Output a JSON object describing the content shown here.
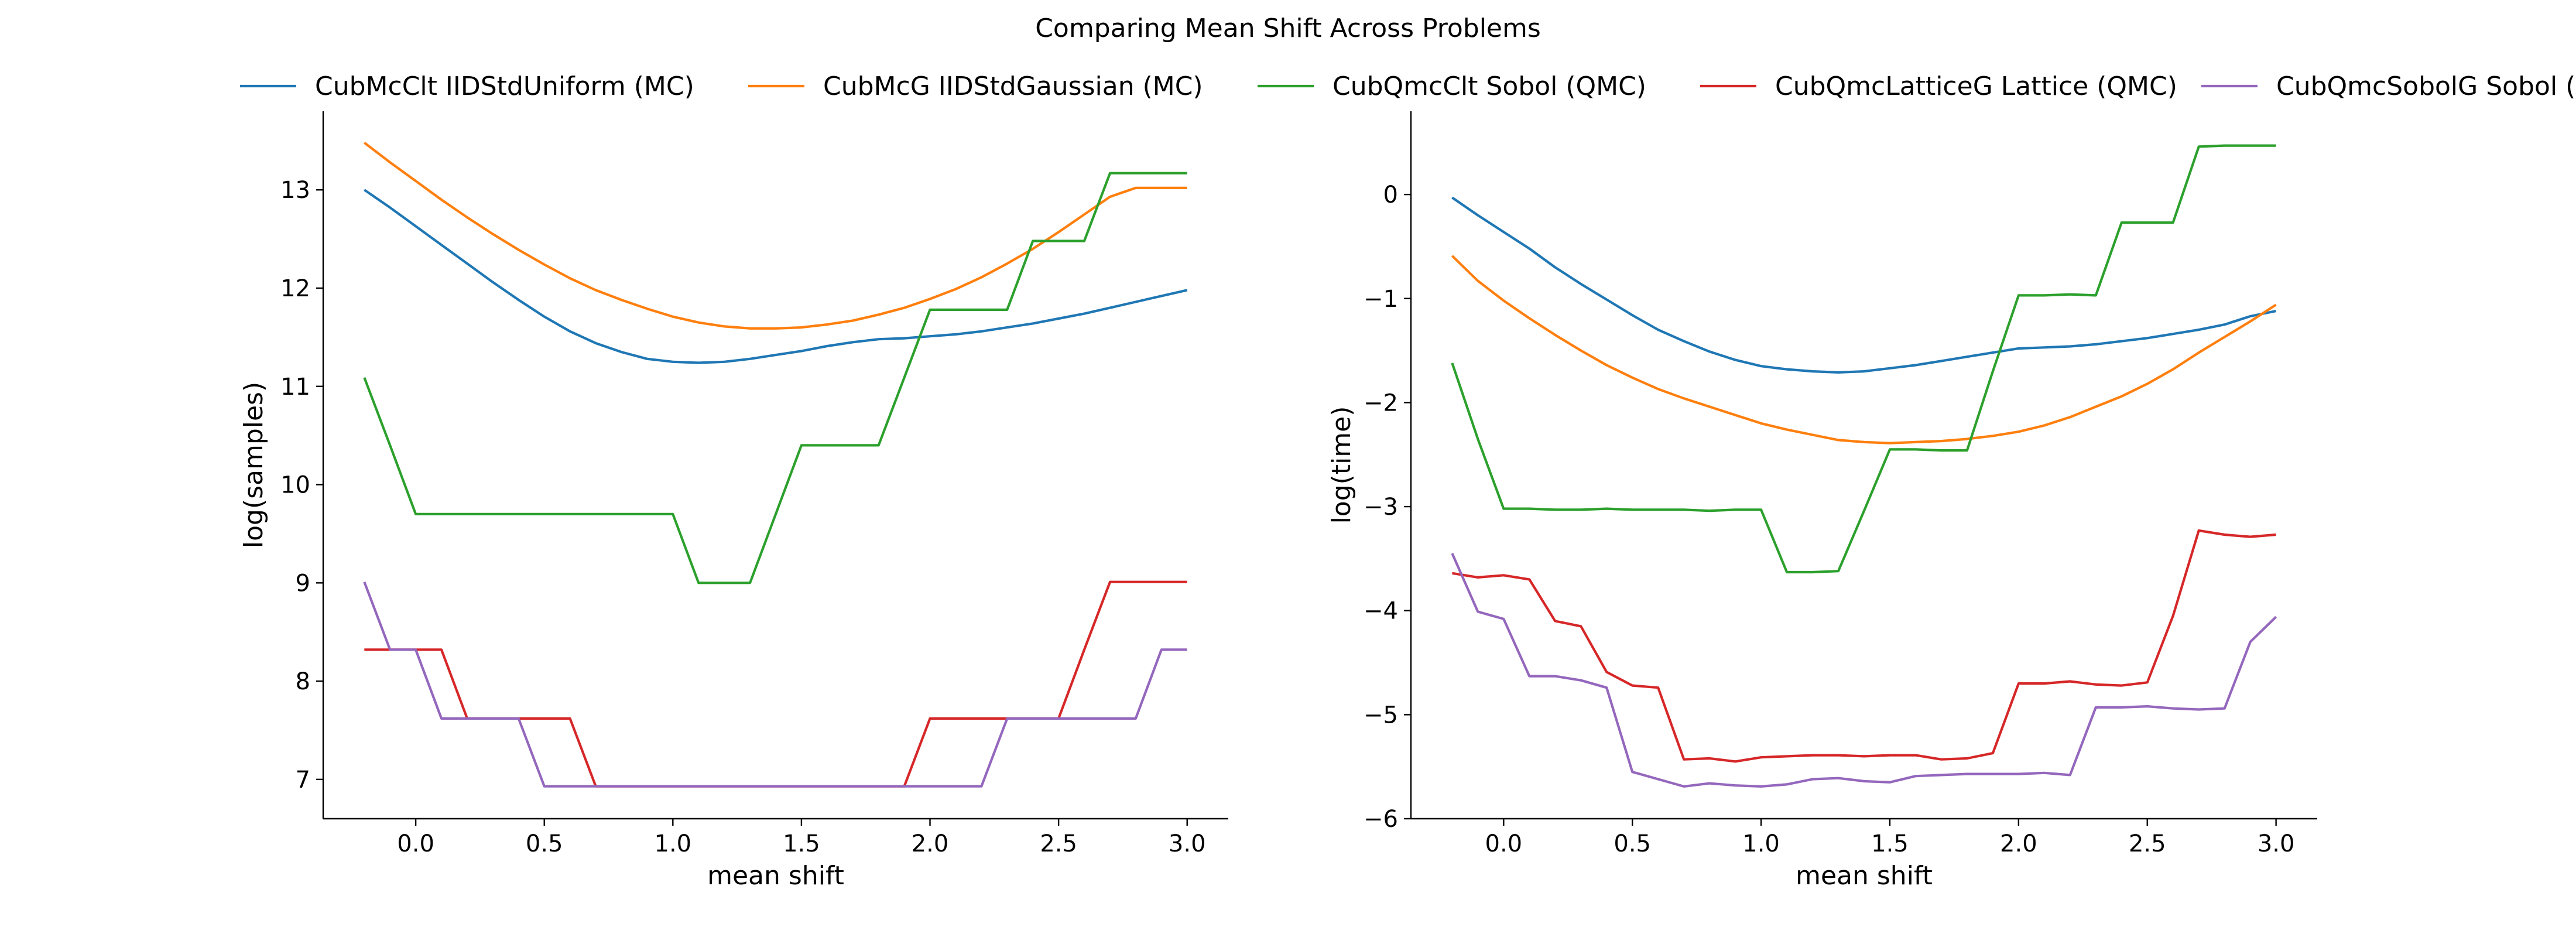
{
  "figure": {
    "title": "Comparing Mean Shift Across Problems"
  },
  "chart_data": [
    {
      "type": "line",
      "xlabel": "mean shift",
      "ylabel": "log(samples)",
      "xlim": [
        -0.36,
        3.16
      ],
      "ylim": [
        6.6,
        13.8
      ],
      "xticks": [
        0.0,
        0.5,
        1.0,
        1.5,
        2.0,
        2.5,
        3.0
      ],
      "xtick_labels": [
        "0.0",
        "0.5",
        "1.0",
        "1.5",
        "2.0",
        "2.5",
        "3.0"
      ],
      "yticks": [
        7,
        8,
        9,
        10,
        11,
        12,
        13
      ],
      "ytick_labels": [
        "7",
        "8",
        "9",
        "10",
        "11",
        "12",
        "13"
      ],
      "x": [
        -0.2,
        -0.1,
        0.0,
        0.1,
        0.2,
        0.3,
        0.4,
        0.5,
        0.6,
        0.7,
        0.8,
        0.9,
        1.0,
        1.1,
        1.2,
        1.3,
        1.4,
        1.5,
        1.6,
        1.7,
        1.8,
        1.9,
        2.0,
        2.1,
        2.2,
        2.3,
        2.4,
        2.5,
        2.6,
        2.7,
        2.8,
        2.9,
        3.0
      ],
      "series": [
        {
          "name": "CubMcClt IIDStdUniform (MC)",
          "color": "#1f77b4",
          "values": [
            13.0,
            12.82,
            12.63,
            12.44,
            12.25,
            12.06,
            11.88,
            11.71,
            11.56,
            11.44,
            11.35,
            11.28,
            11.25,
            11.24,
            11.25,
            11.28,
            11.32,
            11.36,
            11.41,
            11.45,
            11.48,
            11.49,
            11.51,
            11.53,
            11.56,
            11.6,
            11.64,
            11.69,
            11.74,
            11.8,
            11.86,
            11.92,
            11.98
          ]
        },
        {
          "name": "CubMcG IIDStdGaussian (MC)",
          "color": "#ff7f0e",
          "values": [
            13.48,
            13.28,
            13.09,
            12.9,
            12.72,
            12.55,
            12.39,
            12.24,
            12.1,
            11.98,
            11.88,
            11.79,
            11.71,
            11.65,
            11.61,
            11.59,
            11.59,
            11.6,
            11.63,
            11.67,
            11.73,
            11.8,
            11.89,
            11.99,
            12.11,
            12.25,
            12.4,
            12.57,
            12.75,
            12.93,
            13.02,
            13.02,
            13.02
          ]
        },
        {
          "name": "CubQmcClt Sobol (QMC)",
          "color": "#2ca02c",
          "values": [
            11.09,
            10.4,
            9.7,
            9.7,
            9.7,
            9.7,
            9.7,
            9.7,
            9.7,
            9.7,
            9.7,
            9.7,
            9.7,
            9.0,
            9.0,
            9.0,
            9.7,
            10.4,
            10.4,
            10.4,
            10.4,
            11.09,
            11.78,
            11.78,
            11.78,
            11.78,
            12.48,
            12.48,
            12.48,
            13.17,
            13.17,
            13.17,
            13.17
          ]
        },
        {
          "name": "CubQmcLatticeG Lattice (QMC)",
          "color": "#d62728",
          "values": [
            8.32,
            8.32,
            8.32,
            8.32,
            7.62,
            7.62,
            7.62,
            7.62,
            7.62,
            6.93,
            6.93,
            6.93,
            6.93,
            6.93,
            6.93,
            6.93,
            6.93,
            6.93,
            6.93,
            6.93,
            6.93,
            6.93,
            7.62,
            7.62,
            7.62,
            7.62,
            7.62,
            7.62,
            8.32,
            9.01,
            9.01,
            9.01,
            9.01
          ]
        },
        {
          "name": "CubQmcSobolG Sobol (QMC)",
          "color": "#9467bd",
          "values": [
            9.01,
            8.32,
            8.32,
            7.62,
            7.62,
            7.62,
            7.62,
            6.93,
            6.93,
            6.93,
            6.93,
            6.93,
            6.93,
            6.93,
            6.93,
            6.93,
            6.93,
            6.93,
            6.93,
            6.93,
            6.93,
            6.93,
            6.93,
            6.93,
            6.93,
            7.62,
            7.62,
            7.62,
            7.62,
            7.62,
            7.62,
            8.32,
            8.32
          ]
        }
      ]
    },
    {
      "type": "line",
      "xlabel": "mean shift",
      "ylabel": "log(time)",
      "xlim": [
        -0.36,
        3.16
      ],
      "ylim": [
        -6.0,
        0.8
      ],
      "xticks": [
        0.0,
        0.5,
        1.0,
        1.5,
        2.0,
        2.5,
        3.0
      ],
      "xtick_labels": [
        "0.0",
        "0.5",
        "1.0",
        "1.5",
        "2.0",
        "2.5",
        "3.0"
      ],
      "yticks": [
        -6,
        -5,
        -4,
        -3,
        -2,
        -1,
        0
      ],
      "ytick_labels": [
        "−6",
        "−5",
        "−4",
        "−3",
        "−2",
        "−1",
        "0"
      ],
      "x": [
        -0.2,
        -0.1,
        0.0,
        0.1,
        0.2,
        0.3,
        0.4,
        0.5,
        0.6,
        0.7,
        0.8,
        0.9,
        1.0,
        1.1,
        1.2,
        1.3,
        1.4,
        1.5,
        1.6,
        1.7,
        1.8,
        1.9,
        2.0,
        2.1,
        2.2,
        2.3,
        2.4,
        2.5,
        2.6,
        2.7,
        2.8,
        2.9,
        3.0
      ],
      "series": [
        {
          "name": "CubMcClt IIDStdUniform (MC)",
          "color": "#1f77b4",
          "values": [
            -0.03,
            -0.2,
            -0.36,
            -0.52,
            -0.7,
            -0.86,
            -1.01,
            -1.16,
            -1.3,
            -1.41,
            -1.51,
            -1.59,
            -1.65,
            -1.68,
            -1.7,
            -1.71,
            -1.7,
            -1.67,
            -1.64,
            -1.6,
            -1.56,
            -1.52,
            -1.48,
            -1.47,
            -1.46,
            -1.44,
            -1.41,
            -1.38,
            -1.34,
            -1.3,
            -1.25,
            -1.17,
            -1.12
          ]
        },
        {
          "name": "CubMcG IIDStdGaussian (MC)",
          "color": "#ff7f0e",
          "values": [
            -0.59,
            -0.83,
            -1.02,
            -1.19,
            -1.35,
            -1.5,
            -1.64,
            -1.76,
            -1.87,
            -1.96,
            -2.04,
            -2.12,
            -2.2,
            -2.26,
            -2.31,
            -2.36,
            -2.38,
            -2.39,
            -2.38,
            -2.37,
            -2.35,
            -2.32,
            -2.28,
            -2.22,
            -2.14,
            -2.04,
            -1.94,
            -1.82,
            -1.68,
            -1.52,
            -1.37,
            -1.22,
            -1.06
          ]
        },
        {
          "name": "CubQmcClt Sobol (QMC)",
          "color": "#2ca02c",
          "values": [
            -1.62,
            -2.35,
            -3.02,
            -3.02,
            -3.03,
            -3.03,
            -3.02,
            -3.03,
            -3.03,
            -3.03,
            -3.04,
            -3.03,
            -3.03,
            -3.63,
            -3.63,
            -3.62,
            -3.04,
            -2.45,
            -2.45,
            -2.46,
            -2.46,
            -1.7,
            -0.97,
            -0.97,
            -0.96,
            -0.97,
            -0.27,
            -0.27,
            -0.27,
            0.46,
            0.47,
            0.47,
            0.47
          ]
        },
        {
          "name": "CubQmcLatticeG Lattice (QMC)",
          "color": "#d62728",
          "values": [
            -3.64,
            -3.68,
            -3.66,
            -3.7,
            -4.1,
            -4.15,
            -4.59,
            -4.72,
            -4.74,
            -5.43,
            -5.42,
            -5.45,
            -5.41,
            -5.4,
            -5.39,
            -5.39,
            -5.4,
            -5.39,
            -5.39,
            -5.43,
            -5.42,
            -5.37,
            -4.7,
            -4.7,
            -4.68,
            -4.71,
            -4.72,
            -4.69,
            -4.05,
            -3.23,
            -3.27,
            -3.29,
            -3.27
          ]
        },
        {
          "name": "CubQmcSobolG Sobol (QMC)",
          "color": "#9467bd",
          "values": [
            -3.45,
            -4.01,
            -4.08,
            -4.63,
            -4.63,
            -4.67,
            -4.74,
            -5.55,
            -5.62,
            -5.69,
            -5.66,
            -5.68,
            -5.69,
            -5.67,
            -5.62,
            -5.61,
            -5.64,
            -5.65,
            -5.59,
            -5.58,
            -5.57,
            -5.57,
            -5.57,
            -5.56,
            -5.58,
            -4.93,
            -4.93,
            -4.92,
            -4.94,
            -4.95,
            -4.94,
            -4.3,
            -4.06
          ]
        }
      ]
    }
  ]
}
